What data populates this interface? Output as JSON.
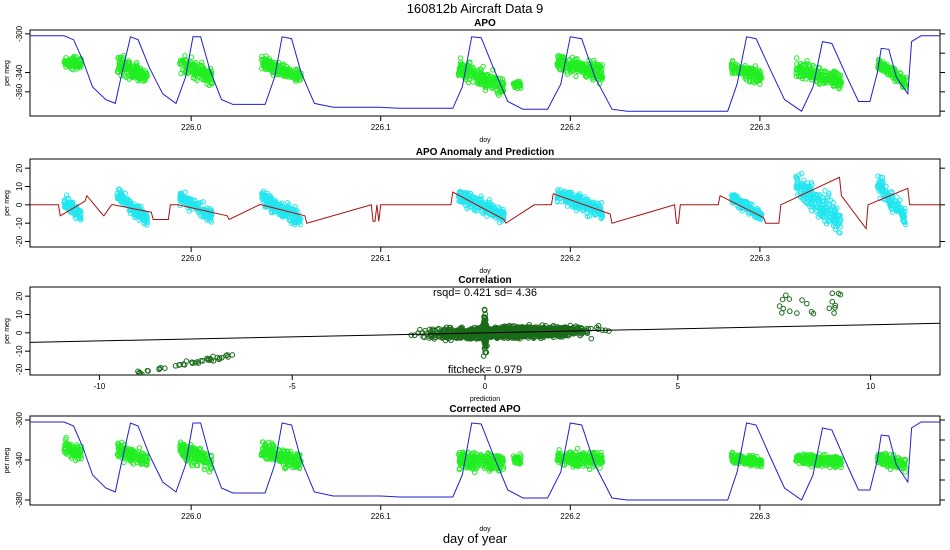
{
  "figure": {
    "title": "160812b   Aircraft Data 9",
    "bottom_label": "day of year"
  },
  "colors": {
    "obs_green": "#22ee22",
    "obs_cyan": "#22e6f0",
    "model_blue": "#1f1fd0",
    "pred_red": "#aa1111",
    "scatter_green": "#1a6b1a",
    "fit_line": "#000000"
  },
  "chart_data": [
    {
      "id": "apo",
      "type": "scatter",
      "title": "APO",
      "xlabel": "doy",
      "ylabel": "per meg",
      "xlim": [
        225.915,
        226.395
      ],
      "ylim": [
        -385,
        -296
      ],
      "y_reversed": true,
      "xticks": [
        226.0,
        226.1,
        226.2,
        226.3
      ],
      "xtick_labels": [
        "226.0",
        "226.1",
        "226.2",
        "226.3"
      ],
      "yticks": [
        -300,
        -340,
        -360
      ],
      "ytick_labels": [
        "-300",
        "-340",
        "-360"
      ],
      "right_ticks": [
        -300,
        -320,
        -340,
        -360,
        -380
      ],
      "series": [
        {
          "role": "observed",
          "style": "points",
          "color": "#22ee22",
          "clusters": [
            {
              "x0": 225.933,
              "x1": 225.942,
              "ymin": -345,
              "ymax": -310,
              "y0": -330,
              "y1": -330
            },
            {
              "x0": 225.961,
              "x1": 225.977,
              "ymin": -360,
              "ymax": -308,
              "y0": -330,
              "y1": -345
            },
            {
              "x0": 225.994,
              "x1": 226.011,
              "ymin": -365,
              "ymax": -312,
              "y0": -330,
              "y1": -345
            },
            {
              "x0": 226.037,
              "x1": 226.058,
              "ymin": -360,
              "ymax": -318,
              "y0": -330,
              "y1": -345
            },
            {
              "x0": 226.141,
              "x1": 226.165,
              "ymin": -380,
              "ymax": -325,
              "y0": -335,
              "y1": -355
            },
            {
              "x0": 226.17,
              "x1": 226.174,
              "ymin": -368,
              "ymax": -340,
              "y0": -352,
              "y1": -352
            },
            {
              "x0": 226.193,
              "x1": 226.217,
              "ymin": -372,
              "ymax": -322,
              "y0": -330,
              "y1": -340
            },
            {
              "x0": 226.285,
              "x1": 226.301,
              "ymin": -360,
              "ymax": -318,
              "y0": -335,
              "y1": -345
            },
            {
              "x0": 226.319,
              "x1": 226.343,
              "ymin": -368,
              "ymax": -318,
              "y0": -335,
              "y1": -350
            },
            {
              "x0": 226.362,
              "x1": 226.377,
              "ymin": -360,
              "ymax": -322,
              "y0": -330,
              "y1": -350
            }
          ]
        },
        {
          "role": "model",
          "style": "line",
          "color": "#1f1fd0",
          "x": [
            225.915,
            225.933,
            225.938,
            225.943,
            225.948,
            225.955,
            225.96,
            225.963,
            225.968,
            225.972,
            225.978,
            225.985,
            225.992,
            225.997,
            226.001,
            226.005,
            226.01,
            226.016,
            226.022,
            226.03,
            226.039,
            226.044,
            226.048,
            226.053,
            226.058,
            226.065,
            226.075,
            226.078,
            226.1,
            226.11,
            226.138,
            226.143,
            226.148,
            226.153,
            226.16,
            226.167,
            226.175,
            226.188,
            226.195,
            226.2,
            226.206,
            226.213,
            226.222,
            226.23,
            226.255,
            226.275,
            226.283,
            226.288,
            226.293,
            226.298,
            226.305,
            226.313,
            226.322,
            226.328,
            226.333,
            226.338,
            226.346,
            226.352,
            226.358,
            226.362,
            226.364,
            226.368,
            226.372,
            226.378,
            226.38,
            226.385,
            226.395
          ],
          "y": [
            -302,
            -302,
            -306,
            -328,
            -355,
            -368,
            -372,
            -345,
            -303,
            -306,
            -335,
            -362,
            -372,
            -345,
            -303,
            -303,
            -338,
            -368,
            -373,
            -373,
            -373,
            -345,
            -303,
            -305,
            -340,
            -372,
            -376,
            -376,
            -376,
            -377,
            -377,
            -355,
            -303,
            -304,
            -338,
            -370,
            -378,
            -378,
            -352,
            -303,
            -305,
            -345,
            -378,
            -380,
            -380,
            -380,
            -380,
            -352,
            -303,
            -305,
            -335,
            -368,
            -380,
            -355,
            -308,
            -310,
            -345,
            -370,
            -370,
            -340,
            -315,
            -316,
            -345,
            -362,
            -308,
            -302,
            -302
          ]
        }
      ]
    },
    {
      "id": "anomaly",
      "type": "scatter",
      "title": "APO Anomaly and Prediction",
      "xlabel": "doy",
      "ylabel": "per meg",
      "xlim": [
        225.915,
        226.395
      ],
      "ylim": [
        -23,
        25
      ],
      "xticks": [
        226.0,
        226.1,
        226.2,
        226.3
      ],
      "xtick_labels": [
        "226.0",
        "226.1",
        "226.2",
        "226.3"
      ],
      "yticks": [
        20,
        10,
        0,
        -10,
        -20
      ],
      "ytick_labels": [
        "20",
        "10",
        "0",
        "-10",
        "-20"
      ],
      "right_ticks": [
        20,
        0,
        -20
      ],
      "series": [
        {
          "role": "anomaly",
          "style": "points",
          "color": "#22e6f0",
          "clusters": [
            {
              "x0": 225.933,
              "x1": 225.942,
              "ymin": -12,
              "ymax": 10,
              "y0": 2,
              "y1": -6
            },
            {
              "x0": 225.961,
              "x1": 225.977,
              "ymin": -12,
              "ymax": 12,
              "y0": 6,
              "y1": -8
            },
            {
              "x0": 225.994,
              "x1": 226.011,
              "ymin": -12,
              "ymax": 10,
              "y0": 4,
              "y1": -6
            },
            {
              "x0": 226.037,
              "x1": 226.058,
              "ymin": -16,
              "ymax": 10,
              "y0": 4,
              "y1": -8
            },
            {
              "x0": 226.141,
              "x1": 226.165,
              "ymin": -12,
              "ymax": 11,
              "y0": 5,
              "y1": -6
            },
            {
              "x0": 226.193,
              "x1": 226.217,
              "ymin": -14,
              "ymax": 13,
              "y0": 6,
              "y1": -4
            },
            {
              "x0": 226.285,
              "x1": 226.301,
              "ymin": -10,
              "ymax": 8,
              "y0": 4,
              "y1": -6
            },
            {
              "x0": 226.319,
              "x1": 226.343,
              "ymin": -22,
              "ymax": 22,
              "y0": 12,
              "y1": -10
            },
            {
              "x0": 226.362,
              "x1": 226.377,
              "ymin": -12,
              "ymax": 23,
              "y0": 12,
              "y1": -8
            }
          ]
        },
        {
          "role": "prediction",
          "style": "line",
          "color": "#aa1111",
          "x": [
            225.915,
            225.93,
            225.931,
            225.944,
            225.945,
            225.953,
            225.954,
            225.958,
            225.959,
            225.979,
            225.98,
            225.988,
            225.989,
            225.992,
            225.993,
            226.019,
            226.02,
            226.036,
            226.037,
            226.06,
            226.061,
            226.095,
            226.096,
            226.097,
            226.098,
            226.099,
            226.1,
            226.137,
            226.138,
            226.165,
            226.166,
            226.181,
            226.182,
            226.19,
            226.191,
            226.221,
            226.222,
            226.255,
            226.256,
            226.257,
            226.258,
            226.278,
            226.279,
            226.302,
            226.303,
            226.31,
            226.311,
            226.342,
            226.343,
            226.356,
            226.357,
            226.378,
            226.379,
            226.395
          ],
          "y": [
            0,
            0,
            -6,
            2,
            5,
            -5,
            -6,
            0,
            0,
            -4,
            -8,
            -8,
            0,
            0,
            0,
            -6,
            -8,
            0,
            0,
            -6,
            -10,
            0,
            -9,
            -9,
            0,
            -9,
            0,
            0,
            7,
            -8,
            -10,
            0,
            0,
            0,
            6,
            -5,
            -10,
            0,
            -10,
            -10,
            0,
            0,
            5,
            -7,
            -10,
            -10,
            0,
            15,
            5,
            -13,
            0,
            9,
            0,
            0
          ]
        }
      ]
    },
    {
      "id": "correlation",
      "type": "scatter",
      "title": "Correlation",
      "annotation_top": "rsqd= 0.421 sd= 4.36",
      "annotation_bottom": "fitcheck= 0.979",
      "xlabel": "prediction",
      "ylabel": "per meg",
      "xlim": [
        -11.8,
        11.8
      ],
      "ylim": [
        -23,
        25
      ],
      "xticks": [
        -10,
        -5,
        0,
        5,
        10
      ],
      "xtick_labels": [
        "-10",
        "-5",
        "0",
        "5",
        "10"
      ],
      "yticks": [
        20,
        10,
        0,
        -10,
        -20
      ],
      "ytick_labels": [
        "20",
        "10",
        "0",
        "-10",
        "-20"
      ],
      "fit_line": {
        "slope": 0.979,
        "intercept": 0
      },
      "series": [
        {
          "role": "points",
          "style": "points",
          "color": "#1a6b1a"
        }
      ]
    },
    {
      "id": "corrected",
      "type": "scatter",
      "title": "Corrected APO",
      "xlabel": "doy",
      "ylabel": "per meg",
      "xlim": [
        225.915,
        226.395
      ],
      "ylim": [
        -385,
        -296
      ],
      "y_reversed": true,
      "xticks": [
        226.0,
        226.1,
        226.2,
        226.3
      ],
      "xtick_labels": [
        "226.0",
        "226.1",
        "226.2",
        "226.3"
      ],
      "yticks": [
        -300,
        -340,
        -380
      ],
      "ytick_labels": [
        "-300",
        "-340",
        "-380"
      ],
      "right_ticks": [
        -300,
        -320,
        -340,
        -360,
        -380
      ],
      "series": [
        {
          "role": "corrected",
          "style": "points",
          "color": "#22ee22",
          "clusters": [
            {
              "x0": 225.933,
              "x1": 225.942,
              "ymin": -350,
              "ymax": -300,
              "y0": -325,
              "y1": -335
            },
            {
              "x0": 225.961,
              "x1": 225.977,
              "ymin": -355,
              "ymax": -305,
              "y0": -330,
              "y1": -340
            },
            {
              "x0": 225.994,
              "x1": 226.011,
              "ymin": -360,
              "ymax": -305,
              "y0": -330,
              "y1": -342
            },
            {
              "x0": 226.037,
              "x1": 226.058,
              "ymin": -362,
              "ymax": -308,
              "y0": -330,
              "y1": -342
            },
            {
              "x0": 226.141,
              "x1": 226.165,
              "ymin": -375,
              "ymax": -325,
              "y0": -340,
              "y1": -342
            },
            {
              "x0": 226.17,
              "x1": 226.174,
              "ymin": -358,
              "ymax": -325,
              "y0": -340,
              "y1": -340
            },
            {
              "x0": 226.193,
              "x1": 226.217,
              "ymin": -372,
              "ymax": -325,
              "y0": -338,
              "y1": -340
            },
            {
              "x0": 226.285,
              "x1": 226.301,
              "ymin": -355,
              "ymax": -322,
              "y0": -338,
              "y1": -342
            },
            {
              "x0": 226.319,
              "x1": 226.343,
              "ymin": -358,
              "ymax": -322,
              "y0": -338,
              "y1": -342
            },
            {
              "x0": 226.362,
              "x1": 226.377,
              "ymin": -360,
              "ymax": -322,
              "y0": -338,
              "y1": -345
            }
          ]
        },
        {
          "role": "model",
          "style": "line",
          "color": "#1f1fd0",
          "x": [
            225.915,
            225.933,
            225.938,
            225.943,
            225.948,
            225.955,
            225.96,
            225.963,
            225.968,
            225.972,
            225.978,
            225.985,
            225.992,
            225.997,
            226.001,
            226.005,
            226.01,
            226.016,
            226.022,
            226.03,
            226.039,
            226.044,
            226.048,
            226.053,
            226.058,
            226.065,
            226.075,
            226.078,
            226.1,
            226.11,
            226.138,
            226.143,
            226.148,
            226.153,
            226.16,
            226.167,
            226.175,
            226.188,
            226.195,
            226.2,
            226.206,
            226.213,
            226.222,
            226.23,
            226.255,
            226.275,
            226.283,
            226.288,
            226.293,
            226.298,
            226.305,
            226.313,
            226.322,
            226.328,
            226.333,
            226.338,
            226.346,
            226.352,
            226.358,
            226.362,
            226.364,
            226.368,
            226.372,
            226.378,
            226.38,
            226.385,
            226.395
          ],
          "y": [
            -302,
            -302,
            -306,
            -328,
            -355,
            -368,
            -372,
            -345,
            -303,
            -306,
            -335,
            -362,
            -372,
            -345,
            -303,
            -303,
            -338,
            -368,
            -373,
            -373,
            -373,
            -345,
            -303,
            -305,
            -340,
            -372,
            -376,
            -376,
            -376,
            -377,
            -377,
            -355,
            -303,
            -304,
            -338,
            -370,
            -378,
            -378,
            -352,
            -303,
            -305,
            -345,
            -378,
            -380,
            -380,
            -380,
            -380,
            -352,
            -303,
            -305,
            -335,
            -368,
            -380,
            -355,
            -308,
            -310,
            -345,
            -370,
            -370,
            -340,
            -315,
            -316,
            -345,
            -362,
            -308,
            -302,
            -302
          ]
        }
      ]
    }
  ]
}
